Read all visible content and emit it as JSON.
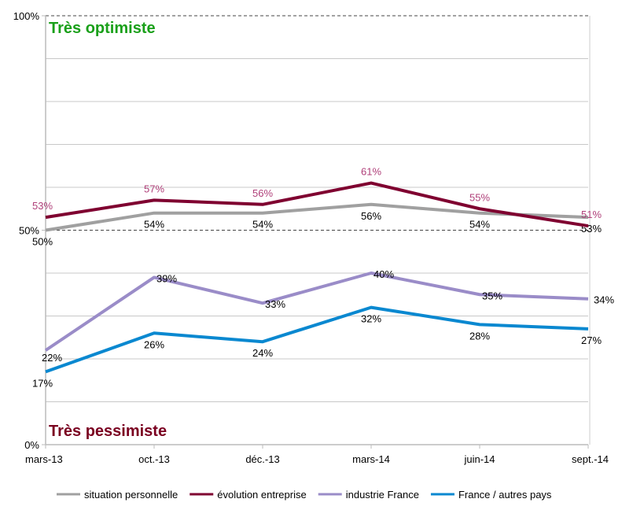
{
  "chart_data": {
    "type": "line",
    "categories": [
      "mars-13",
      "oct.-13",
      "déc.-13",
      "mars-14",
      "juin-14",
      "sept.-14"
    ],
    "ylim": [
      0,
      100
    ],
    "y_ticks": [
      "0%",
      "50%",
      "100%"
    ],
    "grid": true,
    "grid_step": 10,
    "dashed_reference_lines": [
      50,
      100
    ],
    "legend_position": "bottom",
    "annotations": {
      "top": {
        "text": "Très optimiste",
        "color": "#1aa01a"
      },
      "bottom": {
        "text": "Très pessimiste",
        "color": "#7a0020"
      }
    },
    "series": [
      {
        "name": "situation personnelle",
        "color": "#a0a0a0",
        "label_color": "#000000",
        "label_pos": "below",
        "values": [
          50,
          54,
          54,
          56,
          54,
          53
        ]
      },
      {
        "name": "évolution entreprise",
        "color": "#7f0030",
        "label_color": "#b0407a",
        "label_pos": "above",
        "values": [
          53,
          57,
          56,
          61,
          55,
          51
        ]
      },
      {
        "name": "industrie France",
        "color": "#9a8cc8",
        "label_color": "#000000",
        "label_pos": "right",
        "values": [
          22,
          39,
          33,
          40,
          35,
          34
        ]
      },
      {
        "name": "France / autres pays",
        "color": "#0a88d0",
        "label_color": "#000000",
        "label_pos": "below",
        "values": [
          17,
          26,
          24,
          32,
          28,
          27
        ]
      }
    ]
  }
}
